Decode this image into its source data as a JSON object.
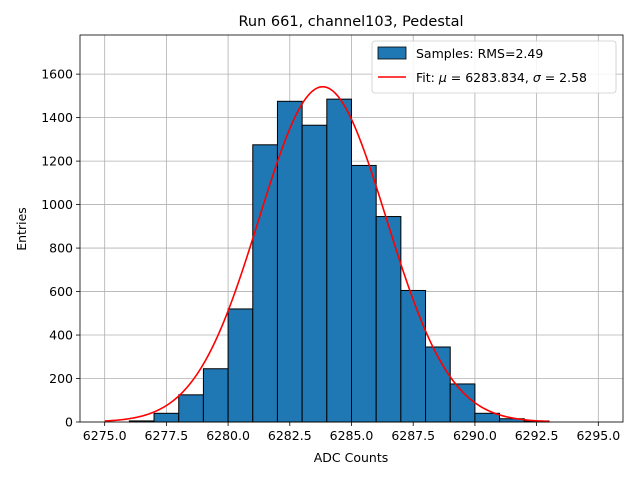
{
  "chart_data": {
    "type": "bar",
    "title": "Run 661, channel103, Pedestal",
    "xlabel": "ADC Counts",
    "ylabel": "Entries",
    "xlim": [
      6274.0,
      6296.0
    ],
    "ylim": [
      0,
      1780
    ],
    "xticks": [
      6275.0,
      6277.5,
      6280.0,
      6282.5,
      6285.0,
      6287.5,
      6290.0,
      6292.5,
      6295.0
    ],
    "xtick_labels": [
      "6275.0",
      "6277.5",
      "6280.0",
      "6282.5",
      "6285.0",
      "6287.5",
      "6290.0",
      "6292.5",
      "6295.0"
    ],
    "yticks": [
      0,
      200,
      400,
      600,
      800,
      1000,
      1200,
      1400,
      1600
    ],
    "ytick_labels": [
      "0",
      "200",
      "400",
      "600",
      "800",
      "1000",
      "1200",
      "1400",
      "1600"
    ],
    "grid": true,
    "legend_position": "top-right",
    "series": [
      {
        "name": "Samples: RMS=2.49",
        "kind": "histogram",
        "color": "#1f77b4",
        "edgecolor": "#000000",
        "bins": [
          {
            "x0": 6275,
            "x1": 6276,
            "value": 0
          },
          {
            "x0": 6276,
            "x1": 6277,
            "value": 5
          },
          {
            "x0": 6277,
            "x1": 6278,
            "value": 40
          },
          {
            "x0": 6278,
            "x1": 6279,
            "value": 125
          },
          {
            "x0": 6279,
            "x1": 6280,
            "value": 245
          },
          {
            "x0": 6280,
            "x1": 6281,
            "value": 520
          },
          {
            "x0": 6281,
            "x1": 6282,
            "value": 1275
          },
          {
            "x0": 6282,
            "x1": 6283,
            "value": 1475
          },
          {
            "x0": 6283,
            "x1": 6284,
            "value": 1365
          },
          {
            "x0": 6284,
            "x1": 6285,
            "value": 1485
          },
          {
            "x0": 6285,
            "x1": 6286,
            "value": 1180
          },
          {
            "x0": 6286,
            "x1": 6287,
            "value": 945
          },
          {
            "x0": 6287,
            "x1": 6288,
            "value": 605
          },
          {
            "x0": 6288,
            "x1": 6289,
            "value": 345
          },
          {
            "x0": 6289,
            "x1": 6290,
            "value": 175
          },
          {
            "x0": 6290,
            "x1": 6291,
            "value": 40
          },
          {
            "x0": 6291,
            "x1": 6292,
            "value": 15
          },
          {
            "x0": 6292,
            "x1": 6293,
            "value": 5
          }
        ]
      },
      {
        "name": "Fit: μ = 6283.834, σ = 2.58",
        "kind": "gaussian-fit",
        "color": "#ff0000",
        "amplitude": 1542,
        "mu": 6283.834,
        "sigma": 2.58,
        "x_range": [
          6275.0,
          6293.0
        ]
      }
    ],
    "legend": {
      "samples_label": "Samples: RMS=2.49",
      "fit_label_prefix": "Fit: ",
      "mu_symbol": "μ",
      "fit_label_mid": " = 6283.834, ",
      "sigma_symbol": "σ",
      "fit_label_suffix": " = 2.58"
    }
  }
}
